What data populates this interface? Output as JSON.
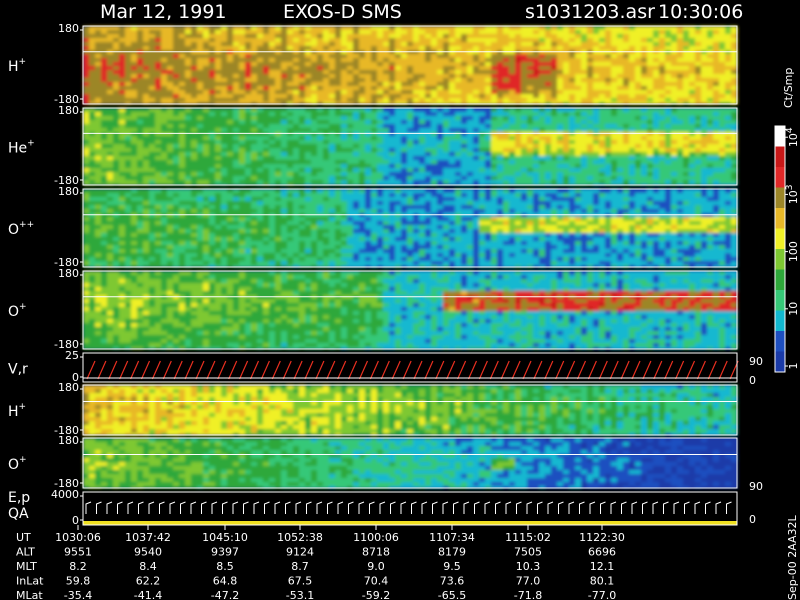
{
  "header": {
    "date": "Mar 12, 1991",
    "instrument": "EXOS-D SMS",
    "file": "s1031203.asr",
    "time": "10:30:06"
  },
  "colorbar": {
    "unit": "Ct/Smp",
    "ticks": [
      {
        "label": "1",
        "value": 1
      },
      {
        "label": "10",
        "value": 10
      },
      {
        "label": "100",
        "value": 100
      },
      {
        "label": "10",
        "sup": "3",
        "value": 1000
      },
      {
        "label": "10",
        "sup": "4",
        "value": 10000
      }
    ],
    "colors": [
      "#1a3aa8",
      "#1e4fc0",
      "#12b8d0",
      "#36c878",
      "#2ea83a",
      "#7ec832",
      "#f0f028",
      "#e8b828",
      "#9c8628",
      "#e02828",
      "#c81818",
      "#ffffff"
    ]
  },
  "chart_data": {
    "type": "heatmap",
    "title": "Mar 12, 1991   EXOS-D SMS",
    "colorbar_label": "Ct/Smp",
    "colorbar_range": [
      1,
      10000
    ],
    "colorbar_scale": "log",
    "panels": [
      {
        "name": "panel-h-plus",
        "label": "H",
        "sup": "+",
        "y_ticks": [
          "180",
          "-180"
        ],
        "ylim": [
          -180,
          180
        ]
      },
      {
        "name": "panel-he-plus",
        "label": "He",
        "sup": "+",
        "y_ticks": [
          "180",
          "-180"
        ],
        "ylim": [
          -180,
          180
        ]
      },
      {
        "name": "panel-o-plus-plus",
        "label": "O",
        "sup": "++",
        "y_ticks": [
          "180",
          "-180"
        ],
        "ylim": [
          -180,
          180
        ]
      },
      {
        "name": "panel-o-plus",
        "label": "O",
        "sup": "+",
        "y_ticks": [
          "180",
          "-180"
        ],
        "ylim": [
          -180,
          180
        ]
      },
      {
        "name": "panel-vr",
        "label": "V,r",
        "sup": "",
        "y_ticks": [
          "25",
          "0"
        ],
        "right_ticks": [
          "90",
          "0"
        ]
      },
      {
        "name": "panel-h-plus-2",
        "label": "H",
        "sup": "+",
        "y_ticks": [
          "180",
          "-180"
        ],
        "ylim": [
          -180,
          180
        ]
      },
      {
        "name": "panel-o-plus-2",
        "label": "O",
        "sup": "+",
        "y_ticks": [
          "180",
          "-180"
        ],
        "right_ticks": [
          "90"
        ],
        "ylim": [
          -180,
          180
        ]
      },
      {
        "name": "panel-ep-qa",
        "label": "E,p",
        "label2": "QA",
        "sup": "",
        "y_ticks": [
          "4000",
          "0"
        ],
        "right_ticks": [
          "0"
        ]
      }
    ],
    "ephemeris": {
      "rows": [
        {
          "label": "UT",
          "values": [
            "1030:06",
            "1037:42",
            "1045:10",
            "1052:38",
            "1100:06",
            "1107:34",
            "1115:02",
            "1122:30"
          ]
        },
        {
          "label": "ALT",
          "values": [
            "9551",
            "9540",
            "9397",
            "9124",
            "8718",
            "8179",
            "7505",
            "6696"
          ]
        },
        {
          "label": "MLT",
          "values": [
            "8.2",
            "8.4",
            "8.5",
            "8.7",
            "9.0",
            "9.5",
            "10.3",
            "12.1"
          ]
        },
        {
          "label": "InLat",
          "values": [
            "59.8",
            "62.2",
            "64.8",
            "67.5",
            "70.4",
            "73.6",
            "77.0",
            "80.1"
          ]
        },
        {
          "label": "MLat",
          "values": [
            "-35.4",
            "-41.4",
            "-47.2",
            "-53.1",
            "-59.2",
            "-65.5",
            "-71.8",
            "-77.0"
          ]
        }
      ]
    },
    "footer_note": "Sep-00  2AA32L"
  }
}
